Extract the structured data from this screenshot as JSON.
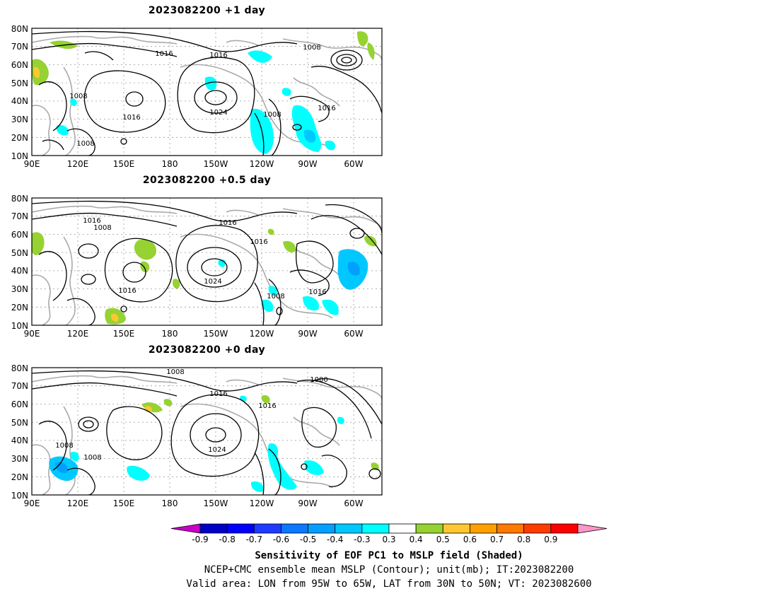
{
  "panels": [
    {
      "title": "2023082200  +1 day",
      "contour_labels": [
        "1016",
        "1016",
        "1008",
        "1008",
        "1016",
        "1024",
        "1008",
        "1016",
        "1008"
      ],
      "lat_labels": [
        "80N",
        "70N",
        "60N",
        "50N",
        "40N",
        "30N",
        "20N",
        "10N"
      ],
      "lon_labels": [
        "90E",
        "120E",
        "150E",
        "180",
        "150W",
        "120W",
        "90W",
        "60W"
      ]
    },
    {
      "title": "2023082200  +0.5 day",
      "contour_labels": [
        "1016",
        "1008",
        "1016",
        "1016",
        "1016",
        "1024",
        "1008",
        "1016"
      ],
      "lat_labels": [
        "80N",
        "70N",
        "60N",
        "50N",
        "40N",
        "30N",
        "20N",
        "10N"
      ],
      "lon_labels": [
        "90E",
        "120E",
        "150E",
        "180",
        "150W",
        "120W",
        "90W",
        "60W"
      ]
    },
    {
      "title": "2023082200  +0 day",
      "contour_labels": [
        "1008",
        "1016",
        "1000",
        "1016",
        "1008",
        "1008",
        "1024"
      ],
      "lat_labels": [
        "80N",
        "70N",
        "60N",
        "50N",
        "40N",
        "30N",
        "20N",
        "10N"
      ],
      "lon_labels": [
        "90E",
        "120E",
        "150E",
        "180",
        "150W",
        "120W",
        "90W",
        "60W"
      ]
    }
  ],
  "colorbar": {
    "ticks": [
      "-0.9",
      "-0.8",
      "-0.7",
      "-0.6",
      "-0.5",
      "-0.4",
      "-0.3",
      "0.3",
      "0.4",
      "0.5",
      "0.6",
      "0.7",
      "0.8",
      "0.9"
    ],
    "colors": [
      "#c800c8",
      "#0000c8",
      "#0000ff",
      "#1e3cff",
      "#0a78ff",
      "#00a0ff",
      "#00c8ff",
      "#00ffff",
      "#ffffff",
      "#96d232",
      "#ffc832",
      "#ffa000",
      "#ff7800",
      "#ff3c00",
      "#ff0000",
      "#ff96c8"
    ]
  },
  "captions": {
    "line1": "Sensitivity of EOF PC1 to MSLP field (Shaded)",
    "line2": "NCEP+CMC ensemble mean MSLP (Contour); unit(mb); IT:2023082200",
    "line3": "Valid area: LON from 95W to 65W, LAT from 30N to 50N; VT: 2023082600"
  }
}
